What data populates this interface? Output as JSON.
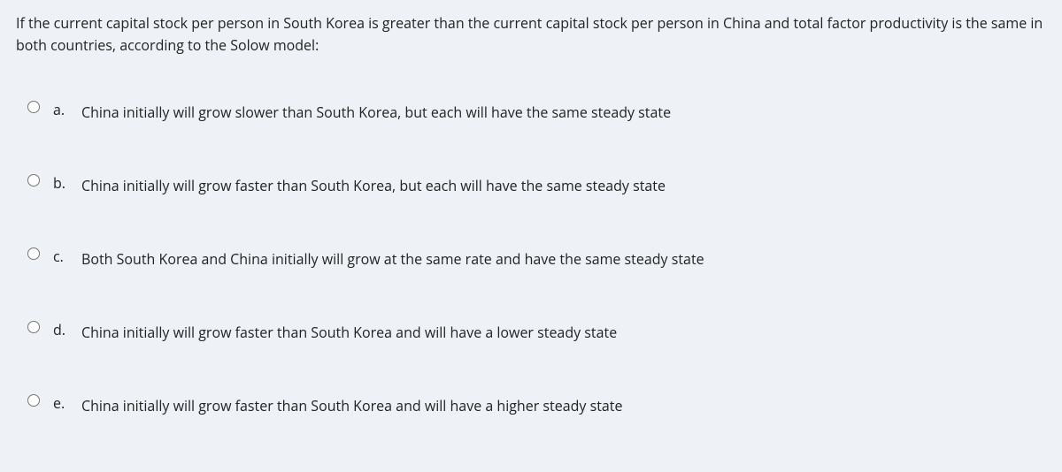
{
  "colors": {
    "background": "#eef2f6",
    "text": "#222222"
  },
  "typography": {
    "font_family": "Segoe UI, Open Sans, Arial, sans-serif",
    "question_fontsize": 16,
    "option_fontsize": 16
  },
  "question": {
    "text": "If the current capital stock per person in South Korea is greater than the current capital stock per person in China and total factor productivity is the same in both countries, according to the Solow model:"
  },
  "options": [
    {
      "letter": "a.",
      "text": "China initially will grow slower than South Korea, but each will have the same steady state"
    },
    {
      "letter": "b.",
      "text": "China initially will grow faster than South Korea, but each will have the same steady state"
    },
    {
      "letter": "c.",
      "text": "Both South Korea and China initially will grow at the same rate and have the same steady state"
    },
    {
      "letter": "d.",
      "text": "China initially will grow faster than South Korea and will have a lower steady state"
    },
    {
      "letter": "e.",
      "text": "China initially will grow faster than South Korea and will have a higher steady state"
    }
  ]
}
